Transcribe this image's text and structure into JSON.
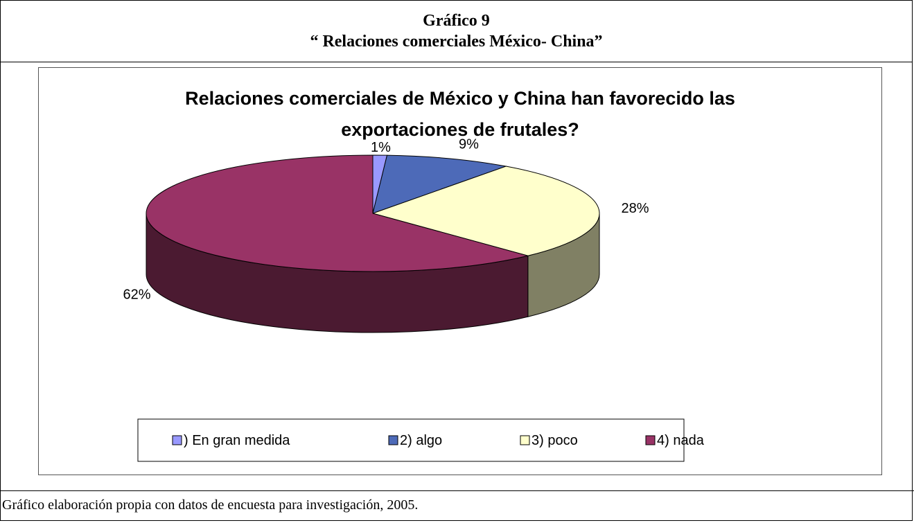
{
  "header": {
    "figure_label": "Gráfico 9",
    "figure_title": "“ Relaciones comerciales México- China”"
  },
  "footer": {
    "source": "Gráfico elaboración propia con datos de encuesta para investigación,  2005."
  },
  "chart_data": {
    "type": "pie",
    "style": "3d",
    "title_lines": [
      "Relaciones comerciales de México y China han favorecido las",
      "exportaciones de frutales?"
    ],
    "categories": [
      ") En gran medida",
      "2) algo",
      "3) poco",
      "4) nada"
    ],
    "values": [
      1,
      9,
      28,
      62
    ],
    "value_labels": [
      "1%",
      "9%",
      "28%",
      "62%"
    ],
    "colors": [
      "#9999ff",
      "#4d6ab8",
      "#ffffcc",
      "#993366"
    ],
    "side_colors": [
      "#6a6ab4",
      "#34497f",
      "#808064",
      "#4b1a31"
    ],
    "legend_position": "bottom"
  }
}
